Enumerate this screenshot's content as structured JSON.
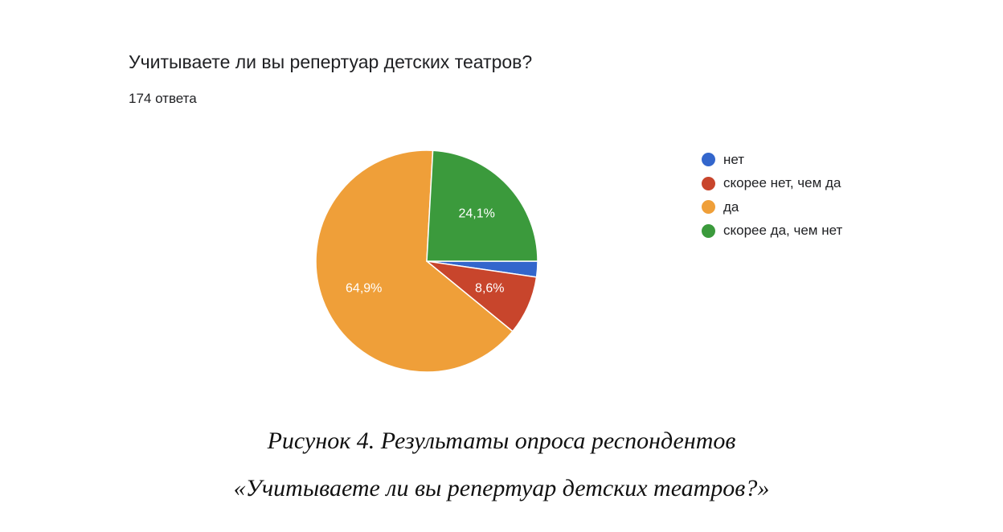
{
  "question": {
    "title": "Учитываете ли вы репертуар детских театров?",
    "responses": "174 ответа"
  },
  "chart_data": {
    "type": "pie",
    "categories": [
      "нет",
      "скорее нет, чем да",
      "да",
      "скорее да, чем нет"
    ],
    "values": [
      2.3,
      8.6,
      64.9,
      24.1
    ],
    "value_labels": [
      "",
      "8,6%",
      "64,9%",
      "24,1%"
    ],
    "colors": [
      "#3366cc",
      "#c8452c",
      "#ef9f39",
      "#3b9a3c"
    ],
    "legend_position": "right"
  },
  "caption": {
    "line1": "Рисунок 4. Результаты опроса респондентов",
    "line2": "«Учитываете ли вы репертуар детских театров?»"
  }
}
